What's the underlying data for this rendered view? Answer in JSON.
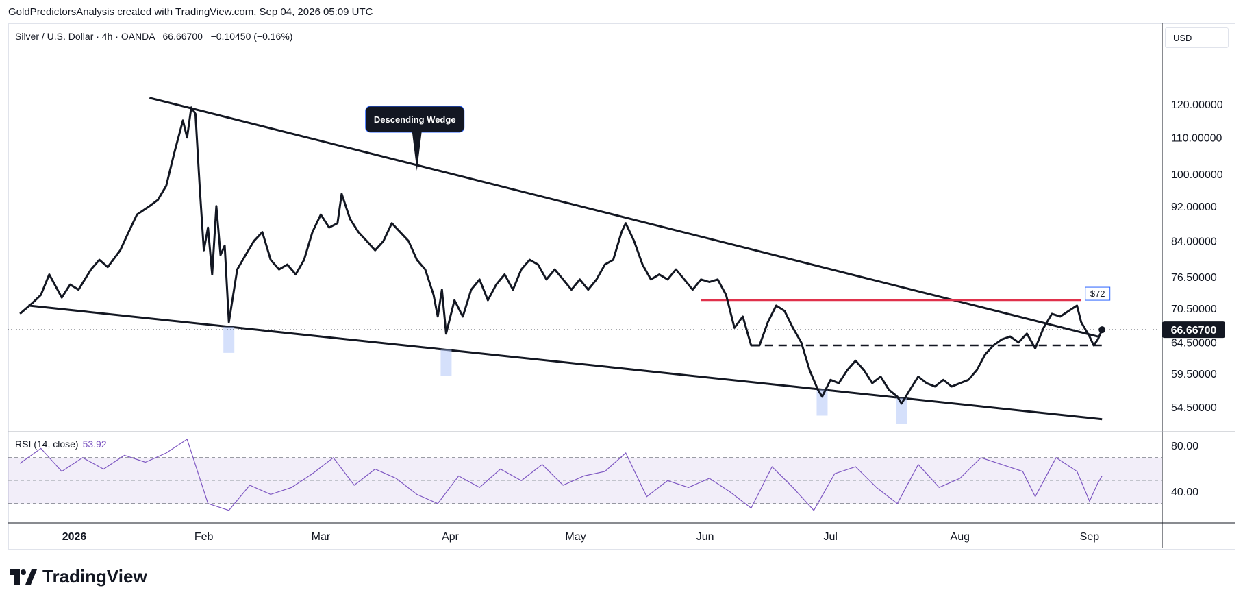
{
  "header": {
    "attribution": "GoldPredictorsAnalysis created with TradingView.com, Sep 04, 2026 05:09 UTC"
  },
  "legend": {
    "symbol": "Silver / U.S. Dollar · 4h · OANDA",
    "last": "66.66700",
    "change": "−0.10450 (−0.16%)"
  },
  "currency_button": "USD",
  "rsi_legend": {
    "label": "RSI (14, close)",
    "value": "53.92"
  },
  "branding": {
    "name": "TradingView",
    "logo_icon": "tradingview-logo-icon"
  },
  "colors": {
    "price_line": "#131722",
    "resistance": "#e0314b",
    "rsi_line": "#7e57c2",
    "rsi_band": "#7e57c2",
    "highlight": "#b3c7f7",
    "axis_text": "#131722",
    "price_label_bg": "#131722"
  },
  "chart_data": {
    "type": "line",
    "price_axis": {
      "scale": "log",
      "tick_labels": [
        "120.00000",
        "110.00000",
        "100.00000",
        "92.00000",
        "84.00000",
        "76.50000",
        "70.50000",
        "64.50000",
        "59.50000",
        "54.50000"
      ],
      "current_price_label": "66.66700"
    },
    "time_axis": {
      "tick_labels": [
        "2026",
        "Feb",
        "Mar",
        "Apr",
        "May",
        "Jun",
        "Jul",
        "Aug",
        "Sep"
      ]
    },
    "series": [
      {
        "name": "Silver / U.S. Dollar",
        "points": [
          [
            "2025-12-19",
            69.5
          ],
          [
            "2025-12-22",
            71.5
          ],
          [
            "2025-12-24",
            73.0
          ],
          [
            "2025-12-26",
            77.0
          ],
          [
            "2025-12-29",
            72.5
          ],
          [
            "2025-12-31",
            75.0
          ],
          [
            "2026-01-02",
            74.0
          ],
          [
            "2026-01-05",
            78.0
          ],
          [
            "2026-01-07",
            80.0
          ],
          [
            "2026-01-09",
            78.5
          ],
          [
            "2026-01-12",
            82.0
          ],
          [
            "2026-01-14",
            86.0
          ],
          [
            "2026-01-16",
            90.0
          ],
          [
            "2026-01-19",
            92.0
          ],
          [
            "2026-01-21",
            93.5
          ],
          [
            "2026-01-23",
            97.0
          ],
          [
            "2026-01-25",
            106.0
          ],
          [
            "2026-01-27",
            115.0
          ],
          [
            "2026-01-28",
            110.0
          ],
          [
            "2026-01-29",
            119.0
          ],
          [
            "2026-01-30",
            117.0
          ],
          [
            "2026-01-31",
            97.0
          ],
          [
            "2026-02-01",
            82.0
          ],
          [
            "2026-02-02",
            87.0
          ],
          [
            "2026-02-03",
            77.0
          ],
          [
            "2026-02-04",
            92.0
          ],
          [
            "2026-02-05",
            81.0
          ],
          [
            "2026-02-06",
            83.0
          ],
          [
            "2026-02-07",
            68.0
          ],
          [
            "2026-02-09",
            78.0
          ],
          [
            "2026-02-11",
            81.0
          ],
          [
            "2026-02-13",
            84.0
          ],
          [
            "2026-02-15",
            86.0
          ],
          [
            "2026-02-17",
            80.0
          ],
          [
            "2026-02-19",
            78.0
          ],
          [
            "2026-02-21",
            79.0
          ],
          [
            "2026-02-23",
            77.0
          ],
          [
            "2026-02-25",
            80.0
          ],
          [
            "2026-02-27",
            86.0
          ],
          [
            "2026-03-01",
            90.0
          ],
          [
            "2026-03-03",
            87.0
          ],
          [
            "2026-03-05",
            88.0
          ],
          [
            "2026-03-06",
            95.0
          ],
          [
            "2026-03-08",
            89.0
          ],
          [
            "2026-03-10",
            86.0
          ],
          [
            "2026-03-12",
            84.0
          ],
          [
            "2026-03-14",
            82.0
          ],
          [
            "2026-03-16",
            84.0
          ],
          [
            "2026-03-18",
            88.0
          ],
          [
            "2026-03-20",
            86.0
          ],
          [
            "2026-03-22",
            84.0
          ],
          [
            "2026-03-24",
            80.0
          ],
          [
            "2026-03-26",
            78.0
          ],
          [
            "2026-03-28",
            73.0
          ],
          [
            "2026-03-29",
            69.0
          ],
          [
            "2026-03-30",
            74.0
          ],
          [
            "2026-03-31",
            66.0
          ],
          [
            "2026-04-02",
            72.0
          ],
          [
            "2026-04-04",
            69.0
          ],
          [
            "2026-04-06",
            74.0
          ],
          [
            "2026-04-08",
            76.0
          ],
          [
            "2026-04-10",
            72.0
          ],
          [
            "2026-04-12",
            75.0
          ],
          [
            "2026-04-14",
            77.0
          ],
          [
            "2026-04-16",
            74.0
          ],
          [
            "2026-04-18",
            78.0
          ],
          [
            "2026-04-20",
            80.0
          ],
          [
            "2026-04-22",
            79.0
          ],
          [
            "2026-04-24",
            76.0
          ],
          [
            "2026-04-26",
            78.0
          ],
          [
            "2026-04-28",
            76.0
          ],
          [
            "2026-04-30",
            74.0
          ],
          [
            "2026-05-02",
            76.0
          ],
          [
            "2026-05-04",
            74.0
          ],
          [
            "2026-05-06",
            76.0
          ],
          [
            "2026-05-08",
            79.0
          ],
          [
            "2026-05-10",
            80.0
          ],
          [
            "2026-05-12",
            86.0
          ],
          [
            "2026-05-13",
            88.0
          ],
          [
            "2026-05-15",
            84.0
          ],
          [
            "2026-05-17",
            79.0
          ],
          [
            "2026-05-19",
            76.0
          ],
          [
            "2026-05-21",
            77.0
          ],
          [
            "2026-05-23",
            76.0
          ],
          [
            "2026-05-25",
            78.0
          ],
          [
            "2026-05-27",
            76.0
          ],
          [
            "2026-05-29",
            74.0
          ],
          [
            "2026-05-31",
            76.0
          ],
          [
            "2026-06-02",
            75.5
          ],
          [
            "2026-06-04",
            76.0
          ],
          [
            "2026-06-06",
            73.0
          ],
          [
            "2026-06-08",
            67.0
          ],
          [
            "2026-06-10",
            69.0
          ],
          [
            "2026-06-12",
            64.0
          ],
          [
            "2026-06-14",
            64.0
          ],
          [
            "2026-06-16",
            68.0
          ],
          [
            "2026-06-18",
            71.0
          ],
          [
            "2026-06-20",
            70.0
          ],
          [
            "2026-06-22",
            67.0
          ],
          [
            "2026-06-24",
            64.5
          ],
          [
            "2026-06-26",
            60.0
          ],
          [
            "2026-06-28",
            57.0
          ],
          [
            "2026-06-29",
            56.0
          ],
          [
            "2026-07-01",
            58.5
          ],
          [
            "2026-07-03",
            58.0
          ],
          [
            "2026-07-05",
            60.0
          ],
          [
            "2026-07-07",
            61.5
          ],
          [
            "2026-07-09",
            60.0
          ],
          [
            "2026-07-11",
            58.0
          ],
          [
            "2026-07-13",
            59.0
          ],
          [
            "2026-07-15",
            57.0
          ],
          [
            "2026-07-17",
            56.0
          ],
          [
            "2026-07-18",
            55.0
          ],
          [
            "2026-07-20",
            57.0
          ],
          [
            "2026-07-22",
            59.0
          ],
          [
            "2026-07-24",
            58.0
          ],
          [
            "2026-07-26",
            57.5
          ],
          [
            "2026-07-28",
            58.5
          ],
          [
            "2026-07-30",
            57.5
          ],
          [
            "2026-08-01",
            58.0
          ],
          [
            "2026-08-03",
            58.5
          ],
          [
            "2026-08-05",
            60.0
          ],
          [
            "2026-08-07",
            62.5
          ],
          [
            "2026-08-09",
            64.0
          ],
          [
            "2026-08-11",
            65.0
          ],
          [
            "2026-08-13",
            65.5
          ],
          [
            "2026-08-15",
            64.5
          ],
          [
            "2026-08-17",
            66.0
          ],
          [
            "2026-08-19",
            63.5
          ],
          [
            "2026-08-21",
            67.0
          ],
          [
            "2026-08-23",
            69.5
          ],
          [
            "2026-08-25",
            69.0
          ],
          [
            "2026-08-27",
            70.0
          ],
          [
            "2026-08-29",
            71.0
          ],
          [
            "2026-08-30",
            68.0
          ],
          [
            "2026-09-01",
            65.5
          ],
          [
            "2026-09-02",
            64.0
          ],
          [
            "2026-09-03",
            65.0
          ],
          [
            "2026-09-04",
            66.667
          ]
        ]
      }
    ],
    "drawings": {
      "upper_trendline": [
        [
          "2026-01-19",
          122.0
        ],
        [
          "2026-09-03",
          65.5
        ]
      ],
      "lower_trendline": [
        [
          "2025-12-21",
          71.0
        ],
        [
          "2026-09-04",
          52.8
        ]
      ],
      "resistance_line": {
        "from": "2026-05-31",
        "to": "2026-08-30",
        "value": 72.0,
        "label": "$72"
      },
      "support_line": {
        "from": "2026-06-12",
        "to": "2026-09-05",
        "value": 64.0
      },
      "annotation": {
        "text": "Descending Wedge",
        "date": "2026-03-24"
      },
      "touch_markers": [
        "2026-02-07",
        "2026-03-31",
        "2026-06-29",
        "2026-07-18"
      ]
    },
    "rsi": {
      "name": "RSI (14, close)",
      "levels": [
        70,
        50,
        30
      ],
      "tick_labels": [
        "80.00",
        "40.00"
      ],
      "values": [
        [
          "2025-12-19",
          65
        ],
        [
          "2025-12-24",
          78
        ],
        [
          "2025-12-29",
          58
        ],
        [
          "2026-01-03",
          70
        ],
        [
          "2026-01-08",
          60
        ],
        [
          "2026-01-13",
          72
        ],
        [
          "2026-01-18",
          66
        ],
        [
          "2026-01-23",
          74
        ],
        [
          "2026-01-28",
          86
        ],
        [
          "2026-02-02",
          30
        ],
        [
          "2026-02-07",
          24
        ],
        [
          "2026-02-12",
          46
        ],
        [
          "2026-02-17",
          38
        ],
        [
          "2026-02-22",
          44
        ],
        [
          "2026-02-27",
          56
        ],
        [
          "2026-03-04",
          70
        ],
        [
          "2026-03-09",
          46
        ],
        [
          "2026-03-14",
          60
        ],
        [
          "2026-03-19",
          52
        ],
        [
          "2026-03-24",
          38
        ],
        [
          "2026-03-29",
          30
        ],
        [
          "2026-04-03",
          54
        ],
        [
          "2026-04-08",
          44
        ],
        [
          "2026-04-13",
          60
        ],
        [
          "2026-04-18",
          50
        ],
        [
          "2026-04-23",
          64
        ],
        [
          "2026-04-28",
          46
        ],
        [
          "2026-05-03",
          54
        ],
        [
          "2026-05-08",
          58
        ],
        [
          "2026-05-13",
          74
        ],
        [
          "2026-05-18",
          36
        ],
        [
          "2026-05-23",
          50
        ],
        [
          "2026-05-28",
          44
        ],
        [
          "2026-06-02",
          52
        ],
        [
          "2026-06-07",
          40
        ],
        [
          "2026-06-12",
          26
        ],
        [
          "2026-06-17",
          62
        ],
        [
          "2026-06-22",
          44
        ],
        [
          "2026-06-27",
          24
        ],
        [
          "2026-07-02",
          56
        ],
        [
          "2026-07-07",
          62
        ],
        [
          "2026-07-12",
          44
        ],
        [
          "2026-07-17",
          30
        ],
        [
          "2026-07-22",
          64
        ],
        [
          "2026-07-27",
          44
        ],
        [
          "2026-08-01",
          52
        ],
        [
          "2026-08-06",
          70
        ],
        [
          "2026-08-11",
          64
        ],
        [
          "2026-08-16",
          58
        ],
        [
          "2026-08-19",
          36
        ],
        [
          "2026-08-24",
          70
        ],
        [
          "2026-08-29",
          58
        ],
        [
          "2026-09-01",
          32
        ],
        [
          "2026-09-03",
          48
        ],
        [
          "2026-09-04",
          54
        ]
      ]
    }
  }
}
